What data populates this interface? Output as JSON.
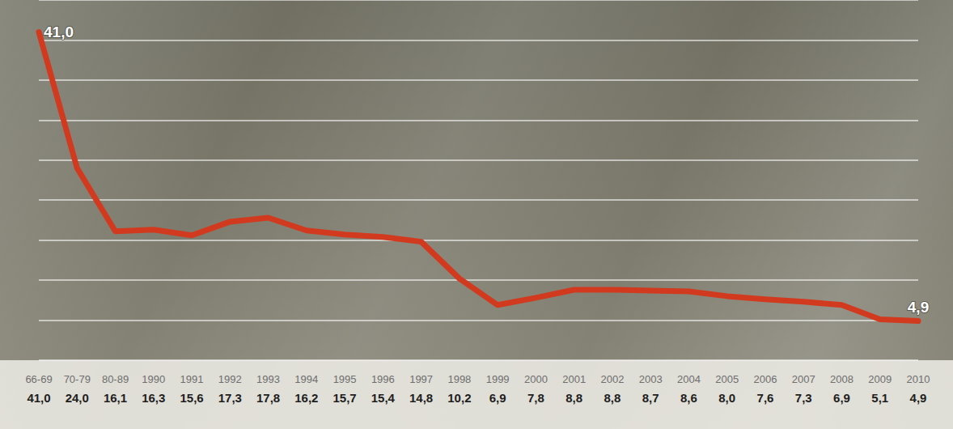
{
  "chart_data": {
    "type": "line",
    "categories": [
      "66-69",
      "70-79",
      "80-89",
      "1990",
      "1991",
      "1992",
      "1993",
      "1994",
      "1995",
      "1996",
      "1997",
      "1998",
      "1999",
      "2000",
      "2001",
      "2002",
      "2003",
      "2004",
      "2005",
      "2006",
      "2007",
      "2008",
      "2009",
      "2010"
    ],
    "values": [
      41.0,
      24.0,
      16.1,
      16.3,
      15.6,
      17.3,
      17.8,
      16.2,
      15.7,
      15.4,
      14.8,
      10.2,
      6.9,
      7.8,
      8.8,
      8.8,
      8.7,
      8.6,
      8.0,
      7.6,
      7.3,
      6.9,
      5.1,
      4.9
    ],
    "value_labels": [
      "41,0",
      "24,0",
      "16,1",
      "16,3",
      "15,6",
      "17,3",
      "17,8",
      "16,2",
      "15,7",
      "15,4",
      "14,8",
      "10,2",
      "6,9",
      "7,8",
      "8,8",
      "8,8",
      "8,7",
      "8,6",
      "8,0",
      "7,6",
      "7,3",
      "6,9",
      "5,1",
      "4,9"
    ],
    "annotations": [
      {
        "category": "66-69",
        "text": "41,0"
      },
      {
        "category": "2010",
        "text": "4,9"
      }
    ],
    "color": "#d23a1f",
    "ylim": [
      0,
      45
    ],
    "yticks": [
      0,
      5,
      10,
      15,
      20,
      25,
      30,
      35,
      40,
      45
    ],
    "grid": true,
    "tick_labels": "x",
    "data_labels": false
  }
}
